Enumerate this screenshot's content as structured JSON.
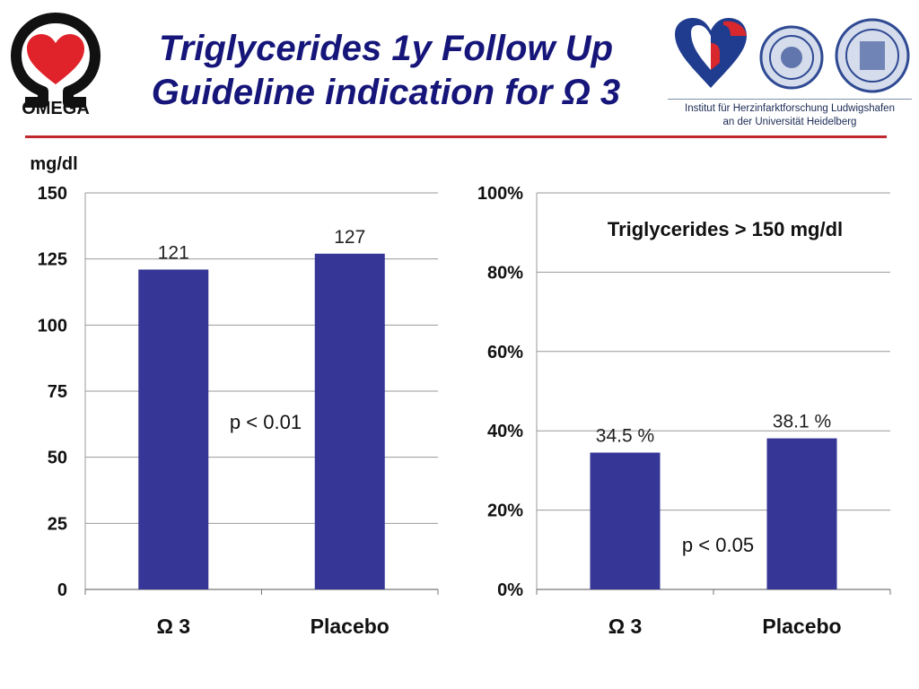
{
  "header": {
    "title_line1": "Triglycerides 1y Follow Up",
    "title_line2": "Guideline indication for Ω 3",
    "logo_text": "OMEGA",
    "institute_line1": "Institut für Herzinfarktforschung Ludwigshafen",
    "institute_line2": "an der Universität Heidelberg"
  },
  "colors": {
    "bar": "#363696",
    "title": "#15157a",
    "divider": "#c0282d",
    "grid": "#9a9a9a"
  },
  "chart_data": [
    {
      "type": "bar",
      "ylabel": "mg/dl",
      "ylim": [
        0,
        150
      ],
      "yticks": [
        0,
        25,
        50,
        75,
        100,
        125,
        150
      ],
      "ytick_labels": [
        "0",
        "25",
        "50",
        "75",
        "100",
        "125",
        "150"
      ],
      "categories": [
        "Ω 3",
        "Placebo"
      ],
      "values": [
        121,
        127
      ],
      "value_labels": [
        "121",
        "127"
      ],
      "annotation": "p < 0.01",
      "grid": true
    },
    {
      "type": "bar",
      "title": "Triglycerides > 150 mg/dl",
      "ylim": [
        0,
        100
      ],
      "yticks": [
        0,
        20,
        40,
        60,
        80,
        100
      ],
      "ytick_labels": [
        "0%",
        "20%",
        "40%",
        "60%",
        "80%",
        "100%"
      ],
      "categories": [
        "Ω 3",
        "Placebo"
      ],
      "values": [
        34.5,
        38.1
      ],
      "value_labels": [
        "34.5 %",
        "38.1 %"
      ],
      "annotation": "p < 0.05",
      "grid": true
    }
  ]
}
